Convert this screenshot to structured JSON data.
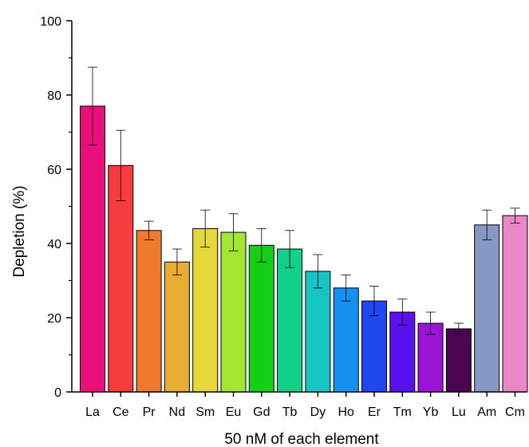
{
  "chart_data": {
    "type": "bar",
    "xlabel": "50 nM of each element",
    "ylabel": "Depletion (%)",
    "ylim": [
      0,
      100
    ],
    "yticks": [
      0,
      20,
      40,
      60,
      80,
      100
    ],
    "yminor_step": 10,
    "grid": false,
    "categories": [
      "La",
      "Ce",
      "Pr",
      "Nd",
      "Sm",
      "Eu",
      "Gd",
      "Tb",
      "Dy",
      "Ho",
      "Er",
      "Tm",
      "Yb",
      "Lu",
      "Am",
      "Cm"
    ],
    "values": [
      77,
      61,
      43.5,
      35,
      44,
      43,
      39.5,
      38.5,
      32.5,
      28,
      24.5,
      21.5,
      18.5,
      17,
      45,
      47.5
    ],
    "errors": [
      10.5,
      9.5,
      2.5,
      3.5,
      5,
      5,
      4.5,
      5,
      4.5,
      3.5,
      4,
      3.5,
      3,
      1.5,
      4,
      2
    ],
    "colors": [
      "#ec0e7c",
      "#f63c3c",
      "#ee7b2b",
      "#e8ad33",
      "#e6d83a",
      "#a4e634",
      "#15cf15",
      "#12d08a",
      "#16c4c4",
      "#1591f2",
      "#2148ee",
      "#5a11ee",
      "#9b14d6",
      "#4a0550",
      "#8898c4",
      "#e888c6"
    ]
  }
}
